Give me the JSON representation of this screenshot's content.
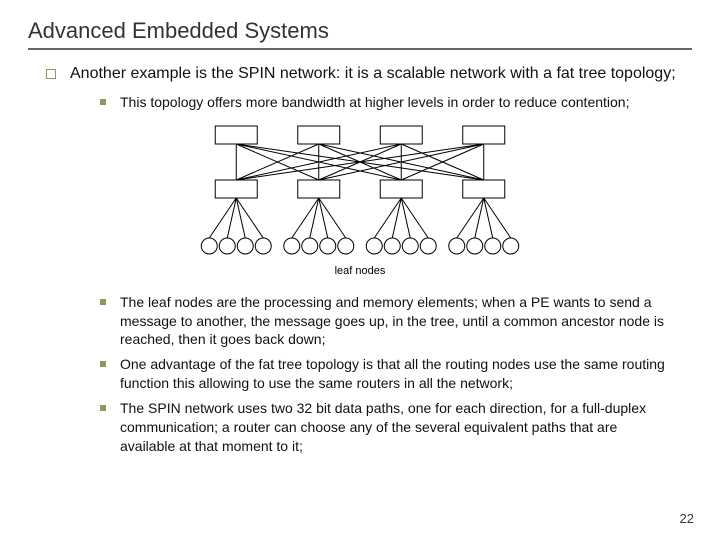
{
  "title": "Advanced Embedded Systems",
  "intro": "Another example is the SPIN network: it is a scalable network with a fat tree topology;",
  "bullets": {
    "b1": "This topology offers more bandwidth at higher levels in order to reduce contention;",
    "b2": "The leaf nodes are the processing and memory elements; when a PE wants to send a message to another, the message goes up, in the tree, until a common ancestor node is reached, then it goes back down;",
    "b3": "One advantage of the fat tree topology is that all the routing nodes use the same routing function this allowing to use the same routers in all the network;",
    "b4": "The SPIN network uses two 32 bit data paths, one for each direction, for a full-duplex communication; a router can choose any of the several equivalent paths that are available at that moment to it;"
  },
  "diagram": {
    "label": "leaf nodes",
    "top_count": 4,
    "mid_count": 4,
    "clusters": 4,
    "leaves_per_cluster": 4,
    "box_fill": "#ffffff",
    "box_stroke": "#000000",
    "circle_fill": "#ffffff",
    "circle_stroke": "#000000",
    "line_stroke": "#000000"
  },
  "page_number": "22",
  "colors": {
    "bullet": "#8a9a5b",
    "rule": "#666666",
    "text": "#111111"
  }
}
